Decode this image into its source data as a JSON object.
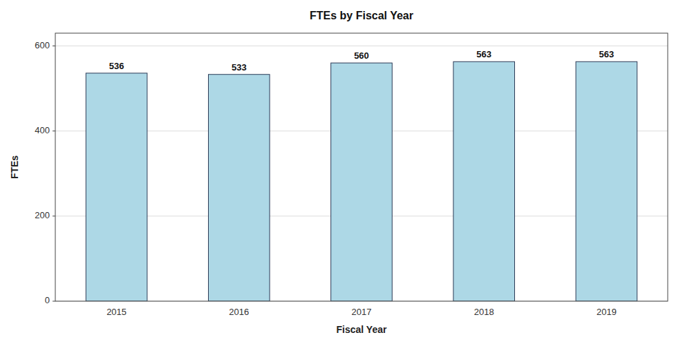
{
  "chart_data": {
    "type": "bar",
    "title": "FTEs by Fiscal Year",
    "xlabel": "Fiscal Year",
    "ylabel": "FTEs",
    "categories": [
      "2015",
      "2016",
      "2017",
      "2018",
      "2019"
    ],
    "values": [
      536,
      533,
      560,
      563,
      563
    ],
    "color": "#add8e6",
    "ylim": [
      0,
      630
    ],
    "yticks": [
      0,
      200,
      400,
      600
    ],
    "grid": true,
    "data_labels": true
  }
}
